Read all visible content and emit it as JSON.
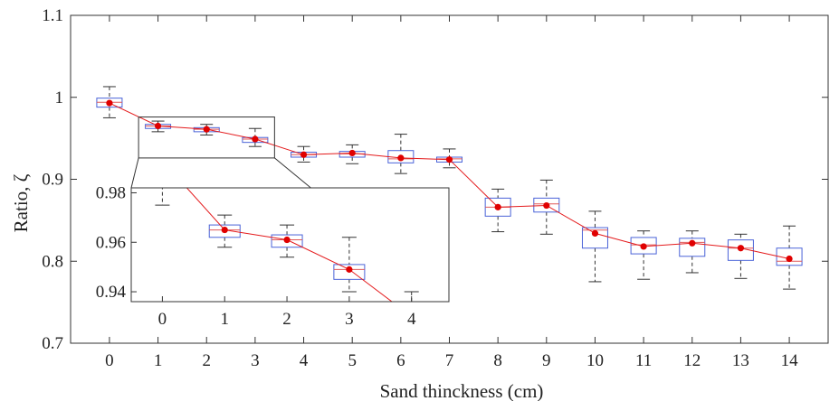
{
  "chart_data": {
    "type": "box",
    "title": "",
    "xlabel": "Sand thinckness (cm)",
    "ylabel": "Ratio, ζ",
    "xlim": [
      -0.8,
      14.8
    ],
    "ylim": [
      0.7,
      1.1
    ],
    "xticks": [
      0,
      1,
      2,
      3,
      4,
      5,
      6,
      7,
      8,
      9,
      10,
      11,
      12,
      13,
      14
    ],
    "yticks": [
      0.7,
      0.8,
      0.9,
      1.0
    ],
    "ytick_labels": [
      "0.7",
      "0.8",
      "0.9",
      "1"
    ],
    "top_tick_label": "1.1",
    "x": [
      0,
      1,
      2,
      3,
      4,
      5,
      6,
      7,
      8,
      9,
      10,
      11,
      12,
      13,
      14
    ],
    "means": [
      0.993,
      0.965,
      0.961,
      0.949,
      0.93,
      0.932,
      0.926,
      0.924,
      0.866,
      0.868,
      0.834,
      0.818,
      0.822,
      0.816,
      0.803
    ],
    "boxes": [
      {
        "x": 0,
        "whisker_low": 0.975,
        "q1": 0.988,
        "median": 0.994,
        "q3": 0.999,
        "whisker_high": 1.013
      },
      {
        "x": 1,
        "whisker_low": 0.958,
        "q1": 0.962,
        "median": 0.965,
        "q3": 0.967,
        "whisker_high": 0.971
      },
      {
        "x": 2,
        "whisker_low": 0.954,
        "q1": 0.958,
        "median": 0.961,
        "q3": 0.963,
        "whisker_high": 0.967
      },
      {
        "x": 3,
        "whisker_low": 0.94,
        "q1": 0.945,
        "median": 0.949,
        "q3": 0.951,
        "whisker_high": 0.962
      },
      {
        "x": 4,
        "whisker_low": 0.921,
        "q1": 0.927,
        "median": 0.93,
        "q3": 0.933,
        "whisker_high": 0.94
      },
      {
        "x": 5,
        "whisker_low": 0.919,
        "q1": 0.927,
        "median": 0.931,
        "q3": 0.934,
        "whisker_high": 0.942
      },
      {
        "x": 6,
        "whisker_low": 0.907,
        "q1": 0.92,
        "median": 0.925,
        "q3": 0.935,
        "whisker_high": 0.955
      },
      {
        "x": 7,
        "whisker_low": 0.914,
        "q1": 0.921,
        "median": 0.925,
        "q3": 0.927,
        "whisker_high": 0.937
      },
      {
        "x": 8,
        "whisker_low": 0.836,
        "q1": 0.855,
        "median": 0.866,
        "q3": 0.877,
        "whisker_high": 0.888
      },
      {
        "x": 9,
        "whisker_low": 0.833,
        "q1": 0.86,
        "median": 0.87,
        "q3": 0.877,
        "whisker_high": 0.899
      },
      {
        "x": 10,
        "whisker_low": 0.775,
        "q1": 0.816,
        "median": 0.838,
        "q3": 0.841,
        "whisker_high": 0.861
      },
      {
        "x": 11,
        "whisker_low": 0.778,
        "q1": 0.809,
        "median": 0.82,
        "q3": 0.829,
        "whisker_high": 0.837
      },
      {
        "x": 12,
        "whisker_low": 0.786,
        "q1": 0.806,
        "median": 0.823,
        "q3": 0.828,
        "whisker_high": 0.837
      },
      {
        "x": 13,
        "whisker_low": 0.779,
        "q1": 0.801,
        "median": 0.816,
        "q3": 0.826,
        "whisker_high": 0.833
      },
      {
        "x": 14,
        "whisker_low": 0.766,
        "q1": 0.795,
        "median": 0.8,
        "q3": 0.816,
        "whisker_high": 0.843
      }
    ],
    "inset": {
      "xlim": [
        -0.5,
        4.6
      ],
      "ylim": [
        0.936,
        0.982
      ],
      "xticks": [
        0,
        1,
        2,
        3,
        4
      ],
      "yticks": [
        0.94,
        0.96,
        0.98
      ],
      "ytick_labels": [
        "0.94",
        "0.96",
        "0.98"
      ],
      "zoom_region": {
        "x": [
          0.6,
          3.4
        ],
        "y": [
          0.926,
          0.976
        ]
      }
    },
    "colors": {
      "box": "#4a63d8",
      "median": "#e05858",
      "whisker": "#333333",
      "line": "#e41a1c",
      "marker": "#e00000",
      "axis": "#333333"
    }
  }
}
